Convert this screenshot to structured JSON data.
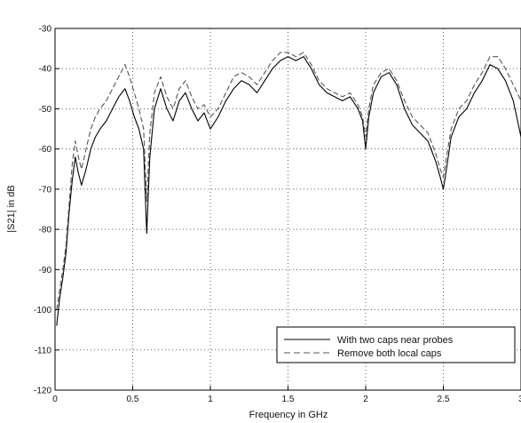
{
  "chart_data": {
    "type": "line",
    "title": "",
    "xlabel": "Frequency in GHz",
    "ylabel": "|S21| in dB",
    "xlim": [
      0,
      3
    ],
    "ylim": [
      -120,
      -30
    ],
    "xticks": [
      0,
      0.5,
      1,
      1.5,
      2,
      2.5,
      3
    ],
    "xtick_labels": [
      "0",
      "0.5",
      "1",
      "1.5",
      "2",
      "2.5",
      "3"
    ],
    "yticks": [
      -120,
      -110,
      -100,
      -90,
      -80,
      -70,
      -60,
      -50,
      -40,
      -30
    ],
    "ytick_labels": [
      "-120",
      "-110",
      "-100",
      "-90",
      "-80",
      "-70",
      "-60",
      "-50",
      "-40",
      "-30"
    ],
    "grid": true,
    "legend_position": "bottom-right",
    "series": [
      {
        "name": "With two caps near probes",
        "style": "solid",
        "color": "#000000",
        "x": [
          0.01,
          0.03,
          0.05,
          0.07,
          0.09,
          0.11,
          0.13,
          0.15,
          0.17,
          0.2,
          0.23,
          0.26,
          0.29,
          0.33,
          0.37,
          0.41,
          0.45,
          0.48,
          0.51,
          0.54,
          0.57,
          0.59,
          0.61,
          0.64,
          0.68,
          0.72,
          0.76,
          0.8,
          0.84,
          0.88,
          0.92,
          0.96,
          1.0,
          1.05,
          1.1,
          1.15,
          1.2,
          1.25,
          1.3,
          1.35,
          1.4,
          1.45,
          1.5,
          1.55,
          1.6,
          1.65,
          1.7,
          1.75,
          1.8,
          1.85,
          1.9,
          1.95,
          1.98,
          2.0,
          2.02,
          2.05,
          2.1,
          2.15,
          2.2,
          2.25,
          2.3,
          2.35,
          2.4,
          2.45,
          2.48,
          2.5,
          2.52,
          2.55,
          2.6,
          2.65,
          2.7,
          2.75,
          2.8,
          2.85,
          2.9,
          2.95,
          3.0
        ],
        "values": [
          -104,
          -97,
          -92,
          -86,
          -76,
          -68,
          -62,
          -66,
          -69,
          -65,
          -60,
          -57,
          -55,
          -53,
          -50,
          -47,
          -45,
          -48,
          -52,
          -55,
          -60,
          -81,
          -62,
          -50,
          -45,
          -50,
          -53,
          -48,
          -46,
          -50,
          -53,
          -51,
          -55,
          -52,
          -48,
          -45,
          -43,
          -44,
          -46,
          -43,
          -40,
          -38,
          -37,
          -38,
          -37,
          -40,
          -44,
          -46,
          -47,
          -48,
          -47,
          -50,
          -53,
          -60,
          -52,
          -46,
          -42,
          -41,
          -44,
          -50,
          -54,
          -56,
          -58,
          -63,
          -67,
          -70,
          -65,
          -57,
          -52,
          -50,
          -46,
          -43,
          -39,
          -40,
          -43,
          -48,
          -57
        ]
      },
      {
        "name": "Remove both local caps",
        "style": "dashed",
        "color": "#555555",
        "x": [
          0.01,
          0.03,
          0.05,
          0.07,
          0.09,
          0.11,
          0.13,
          0.15,
          0.17,
          0.2,
          0.23,
          0.26,
          0.29,
          0.33,
          0.37,
          0.41,
          0.45,
          0.48,
          0.51,
          0.54,
          0.57,
          0.59,
          0.61,
          0.64,
          0.68,
          0.72,
          0.76,
          0.8,
          0.84,
          0.88,
          0.92,
          0.96,
          1.0,
          1.05,
          1.1,
          1.15,
          1.2,
          1.25,
          1.3,
          1.35,
          1.4,
          1.45,
          1.5,
          1.55,
          1.6,
          1.65,
          1.7,
          1.75,
          1.8,
          1.85,
          1.9,
          1.95,
          1.98,
          2.0,
          2.02,
          2.05,
          2.1,
          2.15,
          2.2,
          2.25,
          2.3,
          2.35,
          2.4,
          2.45,
          2.48,
          2.5,
          2.52,
          2.55,
          2.6,
          2.65,
          2.7,
          2.75,
          2.8,
          2.85,
          2.9,
          2.95,
          3.0
        ],
        "values": [
          -100,
          -95,
          -90,
          -84,
          -74,
          -64,
          -58,
          -62,
          -65,
          -60,
          -55,
          -52,
          -50,
          -48,
          -45,
          -42,
          -39,
          -42,
          -46,
          -50,
          -55,
          -73,
          -56,
          -46,
          -42,
          -47,
          -50,
          -45,
          -43,
          -47,
          -50,
          -49,
          -52,
          -50,
          -46,
          -42,
          -41,
          -42,
          -44,
          -41,
          -38,
          -36,
          -36,
          -37,
          -36,
          -39,
          -43,
          -45,
          -46,
          -47,
          -46,
          -49,
          -52,
          -57,
          -50,
          -44,
          -41,
          -40,
          -43,
          -48,
          -52,
          -54,
          -56,
          -61,
          -65,
          -67,
          -62,
          -55,
          -50,
          -48,
          -44,
          -41,
          -37,
          -37,
          -40,
          -44,
          -48
        ]
      }
    ]
  }
}
